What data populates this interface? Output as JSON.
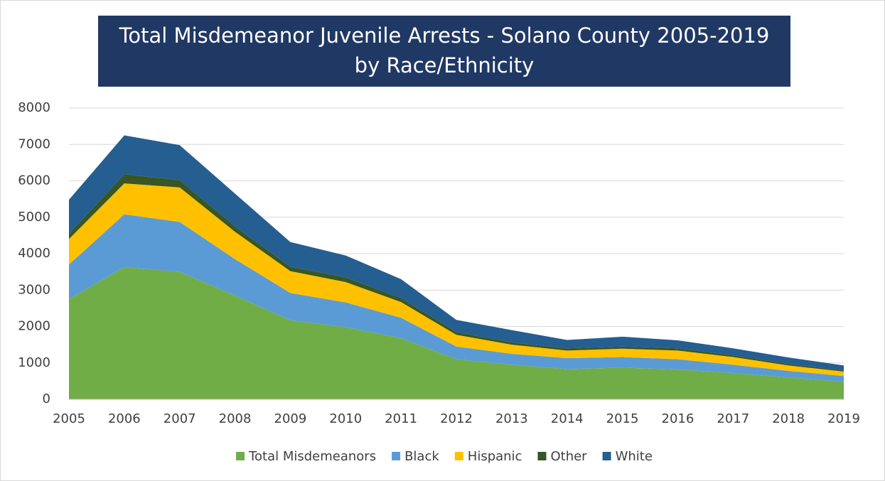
{
  "chart_data": {
    "type": "stacked_area",
    "title": "Total Misdemeanor Juvenile Arrests - Solano County 2005-2019",
    "subtitle": "by Race/Ethnicity",
    "categories": [
      "2005",
      "2006",
      "2007",
      "2008",
      "2009",
      "2010",
      "2011",
      "2012",
      "2013",
      "2014",
      "2015",
      "2016",
      "2017",
      "2018",
      "2019"
    ],
    "series": [
      {
        "name": "Total Misdemeanors",
        "color": "#70ad47",
        "values": [
          2750,
          3630,
          3500,
          2850,
          2170,
          1980,
          1680,
          1100,
          950,
          830,
          870,
          820,
          720,
          600,
          480
        ]
      },
      {
        "name": "Black",
        "color": "#5b9bd5",
        "values": [
          950,
          1450,
          1370,
          1000,
          750,
          680,
          560,
          350,
          300,
          300,
          290,
          280,
          230,
          180,
          160
        ]
      },
      {
        "name": "Hispanic",
        "color": "#ffc000",
        "values": [
          700,
          850,
          950,
          750,
          600,
          560,
          430,
          320,
          250,
          210,
          230,
          240,
          210,
          150,
          120
        ]
      },
      {
        "name": "Other",
        "color": "#375623",
        "values": [
          150,
          250,
          200,
          150,
          120,
          130,
          110,
          80,
          60,
          60,
          60,
          60,
          50,
          40,
          30
        ]
      },
      {
        "name": "White",
        "color": "#255e91",
        "values": [
          930,
          1070,
          960,
          900,
          680,
          600,
          520,
          330,
          340,
          230,
          270,
          220,
          190,
          180,
          140
        ]
      }
    ],
    "ylim": [
      0,
      8000
    ],
    "yticks": [
      0,
      1000,
      2000,
      3000,
      4000,
      5000,
      6000,
      7000,
      8000
    ],
    "grid": true,
    "legend": "bottom"
  }
}
